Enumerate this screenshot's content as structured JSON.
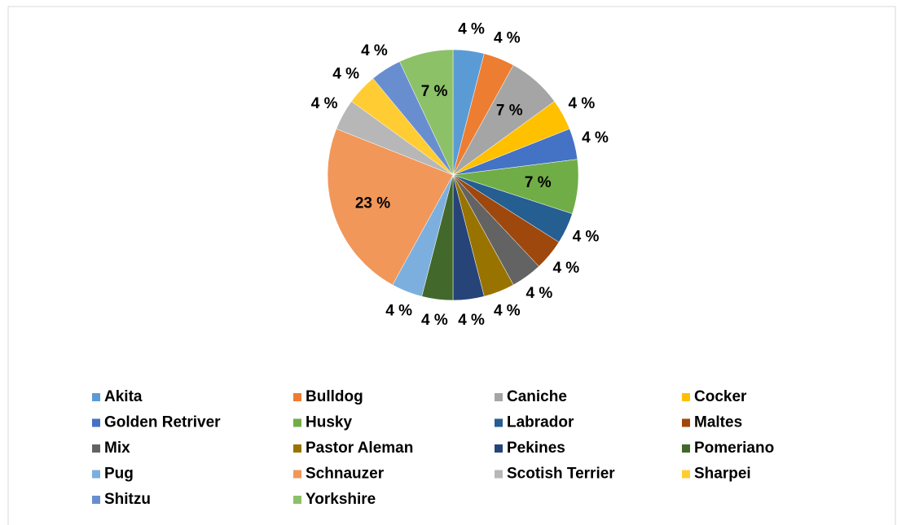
{
  "chart_data": {
    "type": "pie",
    "categories": [
      "Akita",
      "Bulldog",
      "Caniche",
      "Cocker",
      "Golden Retriver",
      "Husky",
      "Labrador",
      "Maltes",
      "Mix",
      "Pastor Aleman",
      "Pekines",
      "Pomeriano",
      "Pug",
      "Schnauzer",
      "Scotish Terrier",
      "Sharpei",
      "Shitzu",
      "Yorkshire"
    ],
    "values": [
      4,
      4,
      7,
      4,
      4,
      7,
      4,
      4,
      4,
      4,
      4,
      4,
      4,
      23,
      4,
      4,
      4,
      7
    ],
    "value_labels": [
      "4 %",
      "4 %",
      "7 %",
      "4 %",
      "4 %",
      "7 %",
      "4 %",
      "4 %",
      "4 %",
      "4 %",
      "4 %",
      "4 %",
      "4 %",
      "23 %",
      "4 %",
      "4 %",
      "4 %",
      "7 %"
    ],
    "colors": [
      "#5b9bd5",
      "#ed7d31",
      "#a5a5a5",
      "#ffc000",
      "#4472c4",
      "#70ad47",
      "#255e91",
      "#9e480e",
      "#636363",
      "#997300",
      "#264478",
      "#43682b",
      "#7cafdd",
      "#f1975a",
      "#b7b7b7",
      "#ffcd33",
      "#698ed0",
      "#8cc168"
    ],
    "legend": "bottom"
  }
}
